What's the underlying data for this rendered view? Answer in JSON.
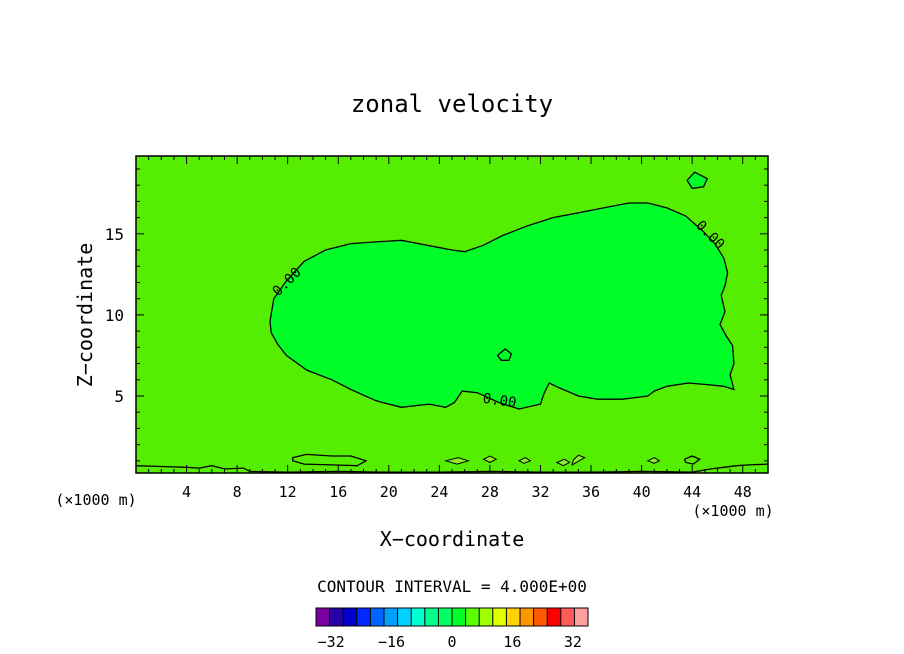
{
  "chart_data": {
    "type": "heatmap",
    "title": "zonal velocity",
    "xlabel": "X−coordinate",
    "ylabel": "Z−coordinate",
    "x_unit_left": "(×1000 m)",
    "x_unit_right": "(×1000 m)",
    "xlim": [
      0,
      50
    ],
    "ylim": [
      0.25,
      19.8
    ],
    "x_ticks": [
      4,
      8,
      12,
      16,
      20,
      24,
      28,
      32,
      36,
      40,
      44,
      48
    ],
    "y_ticks": [
      5,
      10,
      15
    ],
    "contour_label": "0.00",
    "contour_interval": "CONTOUR INTERVAL = 4.000E+00",
    "colorbar": {
      "min": -36,
      "max": 36,
      "step": 4,
      "tick_labels": [
        "−32",
        "−16",
        "0",
        "16",
        "32"
      ],
      "tick_values": [
        -32,
        -16,
        0,
        16,
        32
      ],
      "colors": [
        "#7b00a0",
        "#2800a8",
        "#0000c8",
        "#0028ff",
        "#0064ff",
        "#00a0ff",
        "#00d2ff",
        "#00ffd2",
        "#00ff8c",
        "#00ff64",
        "#00ff28",
        "#5aff00",
        "#a0ff00",
        "#e1ff00",
        "#ffd200",
        "#ff9600",
        "#ff5a00",
        "#ff0000",
        "#ff5a5a",
        "#ffa0a0"
      ]
    },
    "background_color": "#55ee00",
    "inner_region_color": "#00ff28",
    "bottom_patch_color": "#8cee28",
    "zero_contour_main": [
      [
        10.6,
        9.6
      ],
      [
        10.9,
        11.0
      ],
      [
        11.9,
        12.1
      ],
      [
        13.3,
        13.3
      ],
      [
        15.0,
        14.0
      ],
      [
        17.0,
        14.4
      ],
      [
        19.0,
        14.5
      ],
      [
        21.0,
        14.6
      ],
      [
        23.0,
        14.3
      ],
      [
        25.0,
        14.0
      ],
      [
        26.0,
        13.9
      ],
      [
        27.5,
        14.3
      ],
      [
        29.0,
        14.9
      ],
      [
        31.0,
        15.5
      ],
      [
        33.0,
        16.0
      ],
      [
        35.0,
        16.3
      ],
      [
        37.0,
        16.6
      ],
      [
        39.0,
        16.9
      ],
      [
        40.5,
        16.9
      ],
      [
        42.0,
        16.6
      ],
      [
        43.5,
        16.1
      ],
      [
        44.8,
        15.2
      ],
      [
        45.8,
        14.4
      ],
      [
        46.5,
        13.5
      ],
      [
        46.8,
        12.6
      ],
      [
        46.6,
        11.8
      ],
      [
        46.3,
        11.2
      ],
      [
        46.6,
        10.2
      ],
      [
        46.2,
        9.4
      ],
      [
        46.7,
        8.7
      ],
      [
        47.2,
        8.1
      ],
      [
        47.3,
        7.0
      ],
      [
        47.0,
        6.3
      ],
      [
        47.3,
        5.4
      ],
      [
        46.5,
        5.6
      ],
      [
        45.2,
        5.7
      ],
      [
        43.7,
        5.8
      ],
      [
        42.0,
        5.6
      ],
      [
        41.0,
        5.3
      ],
      [
        40.5,
        5.0
      ],
      [
        38.5,
        4.8
      ],
      [
        36.5,
        4.8
      ],
      [
        35.0,
        5.0
      ],
      [
        33.5,
        5.5
      ],
      [
        32.7,
        5.8
      ],
      [
        32.3,
        5.2
      ],
      [
        32.0,
        4.5
      ],
      [
        30.3,
        4.2
      ],
      [
        28.7,
        4.6
      ],
      [
        27.0,
        5.2
      ],
      [
        25.8,
        5.3
      ],
      [
        25.2,
        4.6
      ],
      [
        24.5,
        4.3
      ],
      [
        23.2,
        4.5
      ],
      [
        21.0,
        4.3
      ],
      [
        19.0,
        4.7
      ],
      [
        17.0,
        5.4
      ],
      [
        15.5,
        6.0
      ],
      [
        13.5,
        6.6
      ],
      [
        11.9,
        7.5
      ],
      [
        11.2,
        8.2
      ],
      [
        10.7,
        8.9
      ],
      [
        10.6,
        9.6
      ]
    ],
    "zero_contour_small": [
      [
        [
          28.6,
          7.5
        ],
        [
          29.2,
          7.9
        ],
        [
          29.7,
          7.6
        ],
        [
          29.5,
          7.2
        ],
        [
          28.9,
          7.2
        ],
        [
          28.6,
          7.5
        ]
      ],
      [
        [
          43.6,
          18.3
        ],
        [
          44.2,
          18.8
        ],
        [
          45.2,
          18.4
        ],
        [
          44.9,
          17.9
        ],
        [
          44.0,
          17.8
        ],
        [
          43.6,
          18.3
        ]
      ],
      [
        [
          12.4,
          1.2
        ],
        [
          13.5,
          1.4
        ],
        [
          15.5,
          1.3
        ],
        [
          17.0,
          1.3
        ],
        [
          18.2,
          1.0
        ],
        [
          17.5,
          0.7
        ],
        [
          15.5,
          0.75
        ],
        [
          13.3,
          0.8
        ],
        [
          12.4,
          1.0
        ],
        [
          12.4,
          1.2
        ]
      ],
      [
        [
          43.4,
          1.1
        ],
        [
          44.0,
          1.3
        ],
        [
          44.6,
          1.1
        ],
        [
          44.1,
          0.8
        ],
        [
          43.5,
          0.9
        ],
        [
          43.4,
          1.1
        ]
      ]
    ],
    "bottom_contour_line": [
      [
        0,
        0.7
      ],
      [
        2.0,
        0.65
      ],
      [
        4.0,
        0.6
      ],
      [
        5.0,
        0.55
      ],
      [
        6.0,
        0.7
      ],
      [
        7.0,
        0.5
      ],
      [
        8.5,
        0.55
      ],
      [
        9.0,
        0.35
      ],
      [
        12.0,
        0.3
      ],
      [
        16.0,
        0.35
      ],
      [
        20.0,
        0.3
      ],
      [
        24.0,
        0.3
      ],
      [
        28.0,
        0.35
      ],
      [
        32.0,
        0.3
      ],
      [
        36.0,
        0.3
      ],
      [
        40.0,
        0.35
      ],
      [
        44.0,
        0.3
      ],
      [
        45.5,
        0.5
      ],
      [
        46.5,
        0.6
      ],
      [
        47.5,
        0.7
      ],
      [
        48.5,
        0.75
      ],
      [
        50,
        0.8
      ]
    ],
    "bottom_patches": [
      [
        [
          24.5,
          1.0
        ],
        [
          25.5,
          1.2
        ],
        [
          26.3,
          1.0
        ],
        [
          25.4,
          0.8
        ],
        [
          24.5,
          1.0
        ]
      ],
      [
        [
          27.5,
          1.1
        ],
        [
          28.0,
          1.3
        ],
        [
          28.5,
          1.1
        ],
        [
          28.0,
          0.9
        ],
        [
          27.5,
          1.1
        ]
      ],
      [
        [
          30.3,
          1.0
        ],
        [
          30.8,
          1.2
        ],
        [
          31.2,
          1.0
        ],
        [
          30.7,
          0.85
        ],
        [
          30.3,
          1.0
        ]
      ],
      [
        [
          33.3,
          0.9
        ],
        [
          33.9,
          1.1
        ],
        [
          34.3,
          0.9
        ],
        [
          33.8,
          0.7
        ],
        [
          33.3,
          0.9
        ]
      ],
      [
        [
          34.5,
          0.75
        ],
        [
          35.5,
          1.2
        ],
        [
          35.0,
          1.35
        ],
        [
          34.6,
          1.05
        ],
        [
          34.5,
          0.75
        ]
      ],
      [
        [
          40.5,
          1.0
        ],
        [
          41.0,
          1.2
        ],
        [
          41.4,
          1.0
        ],
        [
          41.0,
          0.85
        ],
        [
          40.5,
          1.0
        ]
      ]
    ]
  }
}
